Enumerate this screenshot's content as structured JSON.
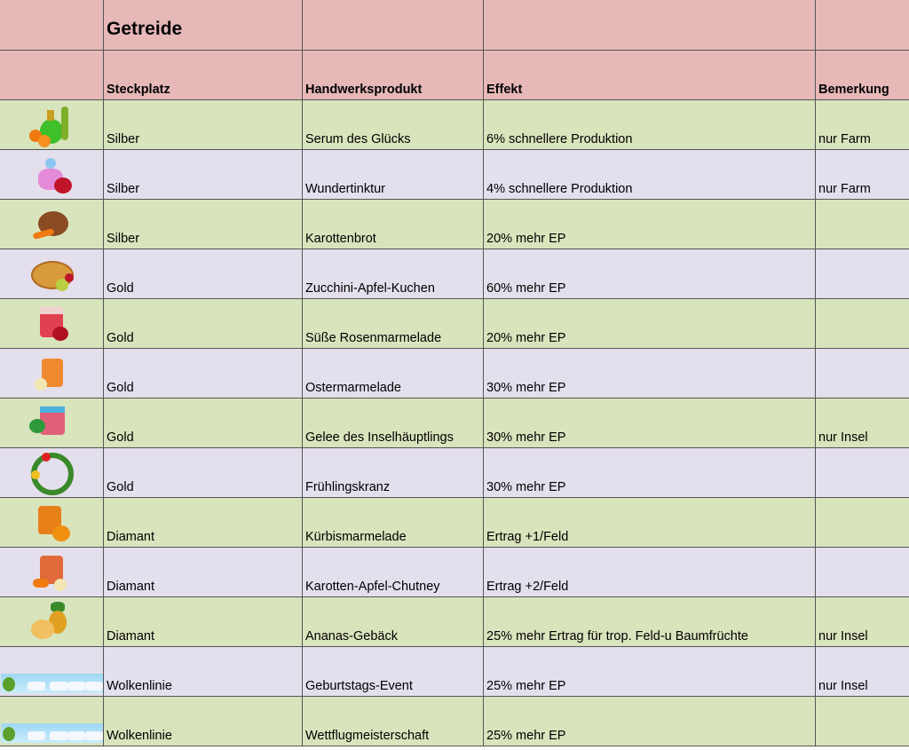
{
  "title": "Getreide",
  "headers": {
    "slot": "Steckplatz",
    "product": "Handwerksprodukt",
    "effect": "Effekt",
    "note": "Bemerkung"
  },
  "colors": {
    "header": "#e6b8b7",
    "row_green": "#d8e4bc",
    "row_lavender": "#e4dfec",
    "grid": "#555555"
  },
  "rows": [
    {
      "icon": "green-perfume-bottle-icon",
      "slot": "Silber",
      "product": "Serum des Glücks",
      "effect": "6% schnellere Produktion",
      "note": "nur Farm"
    },
    {
      "icon": "pink-perfume-rose-icon",
      "slot": "Silber",
      "product": "Wundertinktur",
      "effect": "4% schnellere Produktion",
      "note": "nur Farm"
    },
    {
      "icon": "carrot-bread-icon",
      "slot": "Silber",
      "product": "Karottenbrot",
      "effect": "20% mehr EP",
      "note": ""
    },
    {
      "icon": "apple-pie-icon",
      "slot": "Gold",
      "product": "Zucchini-Apfel-Kuchen",
      "effect": "60% mehr EP",
      "note": ""
    },
    {
      "icon": "rose-jam-jar-icon",
      "slot": "Gold",
      "product": "Süße Rosenmarmelade",
      "effect": "20% mehr EP",
      "note": ""
    },
    {
      "icon": "easter-jam-jar-icon",
      "slot": "Gold",
      "product": "Ostermarmelade",
      "effect": "30% mehr EP",
      "note": ""
    },
    {
      "icon": "island-jelly-jar-icon",
      "slot": "Gold",
      "product": "Gelee des Inselhäuptlings",
      "effect": "30% mehr EP",
      "note": "nur Insel"
    },
    {
      "icon": "spring-wreath-icon",
      "slot": "Gold",
      "product": "Frühlingskranz",
      "effect": "30% mehr EP",
      "note": ""
    },
    {
      "icon": "pumpkin-jam-jar-icon",
      "slot": "Diamant",
      "product": "Kürbismarmelade",
      "effect": "Ertrag +1/Feld",
      "note": ""
    },
    {
      "icon": "chutney-jar-icon",
      "slot": "Diamant",
      "product": "Karotten-Apfel-Chutney",
      "effect": "Ertrag +2/Feld",
      "note": ""
    },
    {
      "icon": "pineapple-pastry-icon",
      "slot": "Diamant",
      "product": "Ananas-Gebäck",
      "effect": "25% mehr Ertrag für trop. Feld-u Baumfrüchte",
      "note": "nur Insel"
    },
    {
      "icon": "cloud-line-strip-icon",
      "slot": "Wolkenlinie",
      "product": "Geburtstags-Event",
      "effect": "25% mehr EP",
      "note": "nur Insel"
    },
    {
      "icon": "cloud-line-planes-strip-icon",
      "slot": "Wolkenlinie",
      "product": "Wettflugmeisterschaft",
      "effect": "25% mehr EP",
      "note": ""
    }
  ]
}
